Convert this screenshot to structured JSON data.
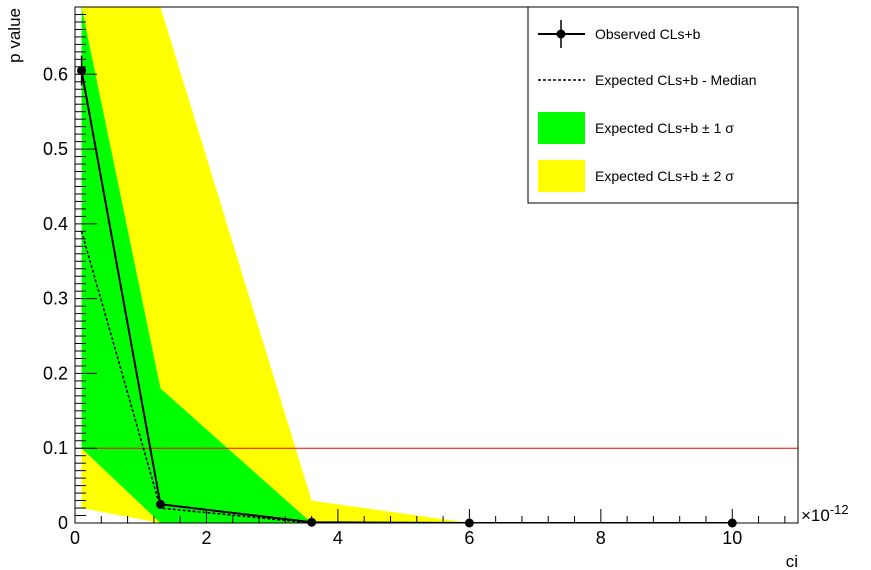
{
  "chart_data": {
    "type": "line",
    "xlabel": "ci",
    "ylabel": "p value",
    "x_multiplier_label": "×10",
    "x_multiplier_exp": "-12",
    "xlim": [
      0,
      11
    ],
    "ylim": [
      0,
      0.69
    ],
    "x_ticks": [
      0,
      2,
      4,
      6,
      8,
      10
    ],
    "x_tick_labels": [
      "0",
      "2",
      "4",
      "6",
      "8",
      "10"
    ],
    "y_ticks": [
      0,
      0.1,
      0.2,
      0.3,
      0.4,
      0.5,
      0.6
    ],
    "y_tick_labels": [
      "0",
      "0.1",
      "0.2",
      "0.3",
      "0.4",
      "0.5",
      "0.6"
    ],
    "threshold": {
      "y": 0.1,
      "color": "#ff0000"
    },
    "observed": {
      "name": "Observed CLs+b",
      "x": [
        0.1,
        1.3,
        3.6,
        6.0,
        10.0
      ],
      "y": [
        0.605,
        0.025,
        0.001,
        0.0,
        0.0
      ],
      "yerr": [
        0.02,
        0.005,
        0.0,
        0.0,
        0.0
      ]
    },
    "expected_median": {
      "name": "Expected CLs+b - Median",
      "x": [
        0.1,
        1.3,
        3.6,
        6.0,
        10.0
      ],
      "y": [
        0.39,
        0.02,
        0.0,
        0.0,
        0.0
      ]
    },
    "band_1sigma": {
      "name": "Expected CLs+b ± 1 σ",
      "color": "#00ff00",
      "x": [
        0.1,
        1.3,
        3.6,
        6.0,
        10.0
      ],
      "upper": [
        0.69,
        0.18,
        0.0,
        0.0,
        0.0
      ],
      "lower": [
        0.1,
        0.0,
        0.0,
        0.0,
        0.0
      ]
    },
    "band_2sigma": {
      "name": "Expected CLs+b ± 2 σ",
      "color": "#ffff00",
      "x": [
        0.1,
        1.3,
        3.6,
        6.0,
        10.0
      ],
      "upper": [
        0.69,
        0.69,
        0.03,
        0.0,
        0.0
      ],
      "lower": [
        0.02,
        0.0,
        0.0,
        0.0,
        0.0
      ]
    },
    "legend": {
      "placement": "top-right",
      "entries": [
        {
          "label": "Observed CLs+b",
          "style": "observed"
        },
        {
          "label": "Expected CLs+b - Median",
          "style": "dashed"
        },
        {
          "label": "Expected CLs+b ± 1 σ",
          "style": "fill",
          "color": "#00ff00"
        },
        {
          "label": "Expected CLs+b ± 2 σ",
          "style": "fill",
          "color": "#ffff00"
        }
      ]
    }
  }
}
